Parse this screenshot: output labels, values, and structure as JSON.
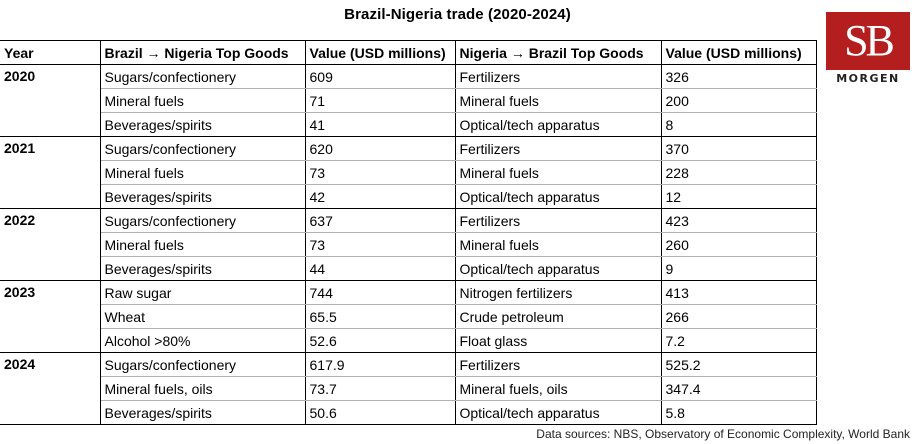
{
  "title": "Brazil-Nigeria trade (2020-2024)",
  "logo": {
    "monogram": "SB",
    "word": "MORGEN",
    "color": "#b41e1e"
  },
  "table": {
    "headers": [
      "Year",
      "Brazil → Nigeria Top Goods",
      "Value (USD millions)",
      "Nigeria → Brazil Top Goods",
      "Value (USD millions)"
    ],
    "groups": [
      {
        "year": "2020",
        "rows": [
          [
            "Sugars/confectionery",
            "609",
            "Fertilizers",
            "326"
          ],
          [
            "Mineral fuels",
            "71",
            "Mineral fuels",
            "200"
          ],
          [
            "Beverages/spirits",
            "41",
            "Optical/tech apparatus",
            "8"
          ]
        ]
      },
      {
        "year": "2021",
        "rows": [
          [
            "Sugars/confectionery",
            "620",
            "Fertilizers",
            "370"
          ],
          [
            "Mineral fuels",
            "73",
            "Mineral fuels",
            "228"
          ],
          [
            "Beverages/spirits",
            "42",
            "Optical/tech apparatus",
            "12"
          ]
        ]
      },
      {
        "year": "2022",
        "rows": [
          [
            "Sugars/confectionery",
            "637",
            "Fertilizers",
            "423"
          ],
          [
            "Mineral fuels",
            "73",
            "Mineral fuels",
            "260"
          ],
          [
            "Beverages/spirits",
            "44",
            "Optical/tech apparatus",
            "9"
          ]
        ]
      },
      {
        "year": "2023",
        "rows": [
          [
            "Raw sugar",
            "744",
            "Nitrogen fertilizers",
            "413"
          ],
          [
            "Wheat",
            "65.5",
            "Crude petroleum",
            "266"
          ],
          [
            "Alcohol >80%",
            "52.6",
            "Float glass",
            "7.2"
          ]
        ]
      },
      {
        "year": "2024",
        "rows": [
          [
            "Sugars/confectionery",
            "617.9",
            "Fertilizers",
            "525.2"
          ],
          [
            "Mineral fuels, oils",
            "73.7",
            "Mineral fuels, oils",
            "347.4"
          ],
          [
            "Beverages/spirits",
            "50.6",
            "Optical/tech apparatus",
            "5.8"
          ]
        ]
      }
    ]
  },
  "source": "Data sources: NBS, Observatory of Economic Complexity, World Bank"
}
